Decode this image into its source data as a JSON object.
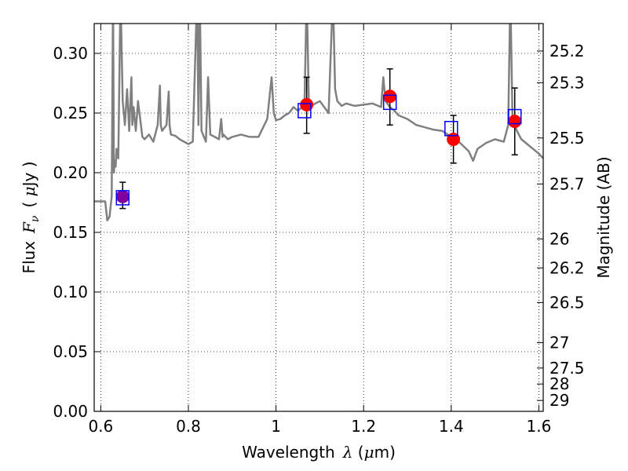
{
  "chart_data": {
    "type": "scatter",
    "xlabel": {
      "prefix": "Wavelength",
      "symbol": "λ",
      "unit_open": " (",
      "unit_mu": "μ",
      "unit_rest": "m)"
    },
    "ylabel": {
      "prefix": "Flux",
      "symbol": "F",
      "subscript": "ν",
      "unit_open": "( ",
      "unit_mu": "μ",
      "unit_rest": "Jy )"
    },
    "y2label": "Magnitude (AB)",
    "xlim": [
      0.585,
      1.61
    ],
    "ylim": [
      0.0,
      0.325
    ],
    "xticks": [
      0.6,
      0.8,
      1.0,
      1.2,
      1.4,
      1.6
    ],
    "xtick_labels": [
      "0.6",
      "0.8",
      "1",
      "1.2",
      "1.4",
      "1.6"
    ],
    "yticks": [
      0.0,
      0.05,
      0.1,
      0.15,
      0.2,
      0.25,
      0.3
    ],
    "ytick_labels": [
      "0.00",
      "0.05",
      "0.10",
      "0.15",
      "0.20",
      "0.25",
      "0.30"
    ],
    "mag_ticks": [
      25.2,
      25.3,
      25.5,
      25.7,
      26,
      26.2,
      26.5,
      27,
      27.5,
      28,
      29
    ],
    "mag_tick_labels": [
      "25.2",
      "25.3",
      "25.5",
      "25.7",
      "26",
      "26.2",
      "26.5",
      "27",
      "27.5",
      "28",
      "29"
    ],
    "grid": true,
    "colors": {
      "model": "#808080",
      "observed": "#ff0000",
      "model_band": "#0000ff",
      "errorbar": "#000000",
      "overlap": "#8000a0"
    },
    "series": [
      {
        "kind": "model_spectrum_line",
        "x": [
          0.585,
          0.6,
          0.61,
          0.615,
          0.62,
          0.625,
          0.628,
          0.63,
          0.632,
          0.634,
          0.636,
          0.64,
          0.645,
          0.65,
          0.655,
          0.66,
          0.665,
          0.67,
          0.672,
          0.675,
          0.68,
          0.685,
          0.69,
          0.695,
          0.7,
          0.71,
          0.72,
          0.73,
          0.735,
          0.737,
          0.74,
          0.75,
          0.755,
          0.757,
          0.76,
          0.77,
          0.78,
          0.79,
          0.8,
          0.81,
          0.82,
          0.823,
          0.826,
          0.83,
          0.84,
          0.845,
          0.848,
          0.85,
          0.86,
          0.87,
          0.875,
          0.878,
          0.88,
          0.89,
          0.9,
          0.92,
          0.94,
          0.96,
          0.98,
          0.99,
          0.995,
          1.0,
          1.01,
          1.02,
          1.03,
          1.04,
          1.05,
          1.06,
          1.065,
          1.07,
          1.075,
          1.08,
          1.09,
          1.1,
          1.12,
          1.13,
          1.135,
          1.14,
          1.15,
          1.16,
          1.18,
          1.2,
          1.22,
          1.24,
          1.245,
          1.25,
          1.26,
          1.27,
          1.28,
          1.3,
          1.32,
          1.34,
          1.36,
          1.38,
          1.4,
          1.42,
          1.44,
          1.45,
          1.46,
          1.48,
          1.5,
          1.52,
          1.53,
          1.535,
          1.54,
          1.545,
          1.55,
          1.56,
          1.58,
          1.6,
          1.61
        ],
        "y": [
          0.176,
          0.176,
          0.176,
          0.16,
          0.163,
          0.18,
          0.35,
          0.2,
          0.21,
          0.205,
          0.22,
          0.212,
          0.35,
          0.26,
          0.24,
          0.27,
          0.235,
          0.28,
          0.24,
          0.255,
          0.235,
          0.26,
          0.245,
          0.23,
          0.228,
          0.232,
          0.226,
          0.24,
          0.273,
          0.24,
          0.235,
          0.24,
          0.268,
          0.24,
          0.232,
          0.231,
          0.228,
          0.226,
          0.224,
          0.226,
          0.35,
          0.24,
          0.35,
          0.235,
          0.226,
          0.28,
          0.25,
          0.232,
          0.23,
          0.228,
          0.245,
          0.23,
          0.232,
          0.228,
          0.23,
          0.232,
          0.23,
          0.23,
          0.245,
          0.28,
          0.25,
          0.244,
          0.245,
          0.248,
          0.25,
          0.255,
          0.252,
          0.255,
          0.258,
          0.35,
          0.26,
          0.256,
          0.258,
          0.26,
          0.25,
          0.35,
          0.27,
          0.26,
          0.256,
          0.258,
          0.256,
          0.257,
          0.258,
          0.255,
          0.28,
          0.26,
          0.255,
          0.252,
          0.248,
          0.245,
          0.24,
          0.238,
          0.236,
          0.235,
          0.23,
          0.225,
          0.218,
          0.21,
          0.22,
          0.225,
          0.228,
          0.226,
          0.24,
          0.35,
          0.245,
          0.24,
          0.235,
          0.228,
          0.222,
          0.216,
          0.212
        ]
      },
      {
        "kind": "model_band_fluxes",
        "marker": "open-square",
        "x": [
          0.65,
          1.065,
          1.26,
          1.4,
          1.545
        ],
        "y": [
          0.179,
          0.252,
          0.259,
          0.237,
          0.247
        ]
      },
      {
        "kind": "observed_fluxes",
        "marker": "filled-circle",
        "x": [
          0.65,
          1.07,
          1.26,
          1.405,
          1.545
        ],
        "y": [
          0.18,
          0.257,
          0.264,
          0.228,
          0.243
        ],
        "yerr_low": [
          0.01,
          0.024,
          0.024,
          0.02,
          0.028
        ],
        "yerr_high": [
          0.012,
          0.023,
          0.023,
          0.02,
          0.028
        ]
      }
    ]
  }
}
